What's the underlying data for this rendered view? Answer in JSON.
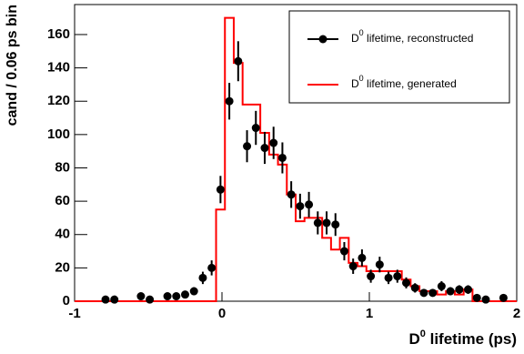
{
  "chart_data": {
    "type": "histogram",
    "xlabel": [
      "D",
      "0",
      " lifetime (ps)"
    ],
    "ylabel": "cand / 0.06 ps bin",
    "xlim": [
      -1,
      2
    ],
    "ylim": [
      0,
      178
    ],
    "xticks": [
      -1,
      0,
      1,
      2
    ],
    "yticks": [
      0,
      20,
      40,
      60,
      80,
      100,
      120,
      140,
      160
    ],
    "legend": "top-right",
    "points": {
      "name": [
        "D",
        "0",
        " lifetime, reconstructed"
      ],
      "color": "#000000",
      "x": [
        -0.79,
        -0.73,
        -0.55,
        -0.49,
        -0.37,
        -0.31,
        -0.25,
        -0.19,
        -0.13,
        -0.07,
        -0.01,
        0.05,
        0.11,
        0.17,
        0.23,
        0.29,
        0.35,
        0.41,
        0.47,
        0.53,
        0.59,
        0.65,
        0.71,
        0.77,
        0.83,
        0.89,
        0.95,
        1.01,
        1.07,
        1.13,
        1.19,
        1.25,
        1.31,
        1.37,
        1.43,
        1.49,
        1.55,
        1.61,
        1.67,
        1.73,
        1.79,
        1.91
      ],
      "values": [
        1,
        1,
        3,
        1,
        3,
        3,
        4,
        6,
        14,
        20,
        67,
        120,
        144,
        93,
        104,
        92,
        95,
        86,
        64,
        57,
        58,
        47,
        47,
        46,
        30,
        21,
        26,
        15,
        22,
        14,
        15,
        11,
        8,
        5,
        5,
        9,
        6,
        7,
        7,
        2,
        1,
        2
      ],
      "errors": [
        1,
        1,
        1.7,
        1,
        1.7,
        1.7,
        2,
        2.4,
        3.7,
        4.5,
        8.2,
        11,
        12,
        9.6,
        10.2,
        9.6,
        9.7,
        9.3,
        8,
        7.5,
        7.6,
        6.9,
        6.9,
        6.8,
        5.5,
        4.6,
        5.1,
        3.9,
        4.7,
        3.7,
        3.9,
        3.3,
        2.8,
        2.2,
        2.2,
        3,
        2.4,
        2.6,
        2.6,
        1.4,
        1,
        1.4
      ]
    },
    "histogram": {
      "name": [
        "D",
        "0",
        " lifetime, generated"
      ],
      "color": "#ff0000",
      "bins": [
        -1,
        -0.94,
        -0.88,
        -0.82,
        -0.76,
        -0.7,
        -0.64,
        -0.58,
        -0.52,
        -0.46,
        -0.4,
        -0.34,
        -0.28,
        -0.22,
        -0.16,
        -0.1,
        -0.04,
        0.02,
        0.08,
        0.14,
        0.2,
        0.26,
        0.32,
        0.38,
        0.44,
        0.5,
        0.56,
        0.62,
        0.68,
        0.74,
        0.8,
        0.86,
        0.92,
        0.98,
        1.04,
        1.1,
        1.16,
        1.22,
        1.28,
        1.34,
        1.4,
        1.46,
        1.52,
        1.58,
        1.64,
        1.7,
        1.76,
        1.82,
        1.88,
        1.94,
        2
      ],
      "counts": [
        0,
        0,
        0,
        0,
        0,
        0,
        0,
        0,
        0,
        0,
        0,
        0,
        0,
        0,
        0,
        0,
        55,
        170,
        143,
        118,
        118,
        101,
        88,
        82,
        64,
        48,
        50,
        50,
        38,
        31,
        38,
        23,
        21,
        18,
        18,
        18,
        18,
        13,
        9,
        6,
        6,
        4,
        6,
        4,
        7,
        0,
        0,
        0,
        0,
        0
      ]
    }
  }
}
